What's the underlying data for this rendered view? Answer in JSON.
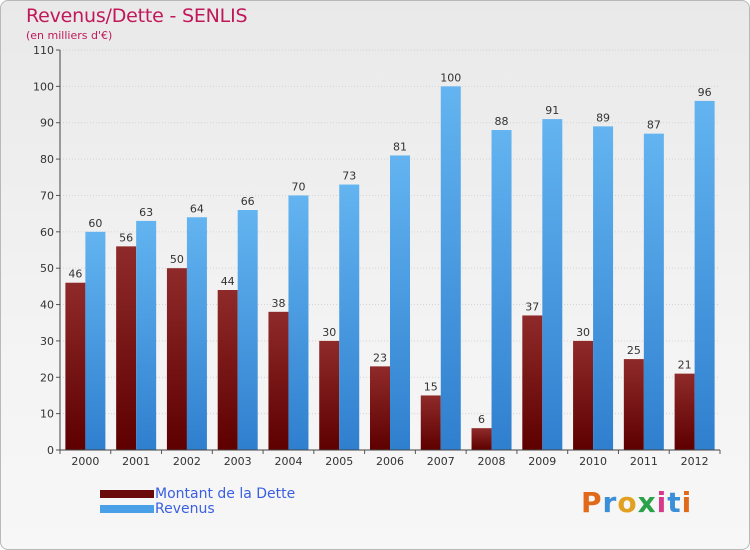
{
  "header": {
    "title": "Revenus/Dette - SENLIS",
    "subtitle": "(en milliers d'€)"
  },
  "colors": {
    "title": "#c0185a",
    "dette_dark": "#5e0000",
    "dette_light": "#8f2a2a",
    "revenus_dark": "#2f7fcf",
    "revenus_light": "#63b4f0",
    "legend_text": "#3a5fe0"
  },
  "legend": [
    {
      "label": "Montant de la Dette",
      "color": "#6a0a0a"
    },
    {
      "label": "Revenus",
      "color": "#4aa0e6"
    }
  ],
  "logo": {
    "letters": [
      "P",
      "r",
      "o",
      "x",
      "i",
      "t",
      "i"
    ],
    "colors": [
      "#e06a1a",
      "#3a8fd8",
      "#e0a020",
      "#2aa24a",
      "#d83a8a",
      "#3a8fd8",
      "#e06a1a"
    ]
  },
  "chart_data": {
    "type": "bar",
    "title": "Revenus/Dette - SENLIS",
    "subtitle": "(en milliers d'€)",
    "xlabel": "",
    "ylabel": "",
    "ylim": [
      0,
      110
    ],
    "yticks": [
      0,
      10,
      20,
      30,
      40,
      50,
      60,
      70,
      80,
      90,
      100,
      110
    ],
    "grid": true,
    "categories": [
      "2000",
      "2001",
      "2002",
      "2003",
      "2004",
      "2005",
      "2006",
      "2007",
      "2008",
      "2009",
      "2010",
      "2011",
      "2012"
    ],
    "series": [
      {
        "name": "Montant de la Dette",
        "values": [
          46,
          56,
          50,
          44,
          38,
          30,
          23,
          15,
          6,
          37,
          30,
          25,
          21
        ]
      },
      {
        "name": "Revenus",
        "values": [
          60,
          63,
          64,
          66,
          70,
          73,
          81,
          100,
          88,
          91,
          89,
          87,
          96
        ]
      }
    ]
  }
}
